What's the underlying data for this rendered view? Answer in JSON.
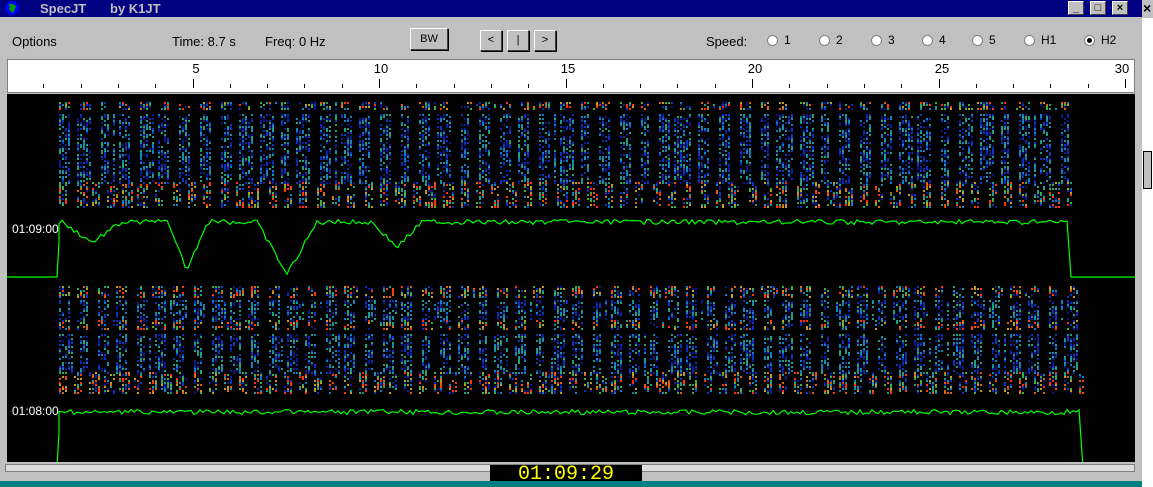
{
  "window": {
    "title_app": "SpecJT",
    "title_by": "by K1JT",
    "minimize_glyph": "_",
    "maximize_glyph": "□",
    "close_glyph": "×"
  },
  "toolbar": {
    "options_label": "Options",
    "time_label": "Time: 8.7 s",
    "freq_label": "Freq: 0 Hz",
    "bw_label": "BW",
    "prev_label": "<",
    "mid_label": "|",
    "next_label": ">",
    "speed_label": "Speed:",
    "speed_options": [
      "1",
      "2",
      "3",
      "4",
      "5",
      "H1",
      "H2"
    ],
    "speed_selected": "H2"
  },
  "ruler": {
    "labels": [
      "5",
      "10",
      "15",
      "20",
      "25",
      "30"
    ]
  },
  "display": {
    "timestamp_top": "01:09:00",
    "timestamp_bottom": "01:08:00",
    "colors": {
      "trace": "#00ff00",
      "background": "#000000"
    }
  },
  "status": {
    "clock": "01:09:29"
  }
}
